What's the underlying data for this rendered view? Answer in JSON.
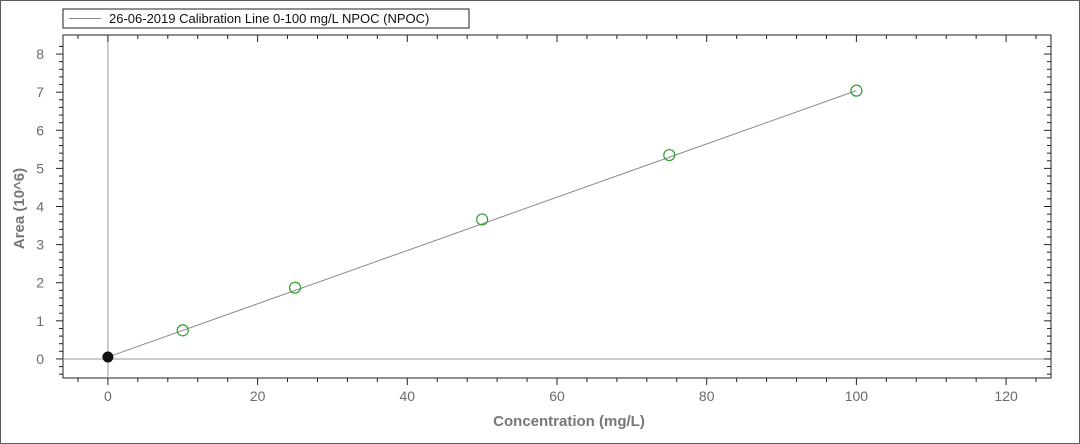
{
  "chart_data": {
    "type": "scatter",
    "legend": {
      "entries": [
        "26-06-2019 Calibration Line 0-100 mg/L NPOC (NPOC)"
      ],
      "placement": "top-left"
    },
    "xlabel": "Concentration (mg/L)",
    "ylabel": "Area (10^6)",
    "xlim": [
      -6,
      126
    ],
    "ylim": [
      -0.5,
      8.5
    ],
    "xticks": [
      0,
      20,
      40,
      60,
      80,
      100,
      120
    ],
    "yticks": [
      0,
      1,
      2,
      3,
      4,
      5,
      6,
      7,
      8
    ],
    "grid": false,
    "series": [
      {
        "name": "26-06-2019 Calibration Line 0-100 mg/L NPOC (NPOC)",
        "kind": "calibration-points",
        "x": [
          10,
          25,
          50,
          75,
          100
        ],
        "y": [
          0.75,
          1.87,
          3.66,
          5.35,
          7.04
        ],
        "marker": "open-circle",
        "color": "#2ca02c"
      },
      {
        "name": "",
        "kind": "origin-point",
        "x": [
          0
        ],
        "y": [
          0.05
        ],
        "marker": "filled-circle",
        "color": "#111111"
      },
      {
        "name": "",
        "kind": "fit-line",
        "x": [
          0,
          100
        ],
        "y": [
          0.05,
          7.04
        ],
        "color": "#8a8a8a"
      }
    ]
  }
}
